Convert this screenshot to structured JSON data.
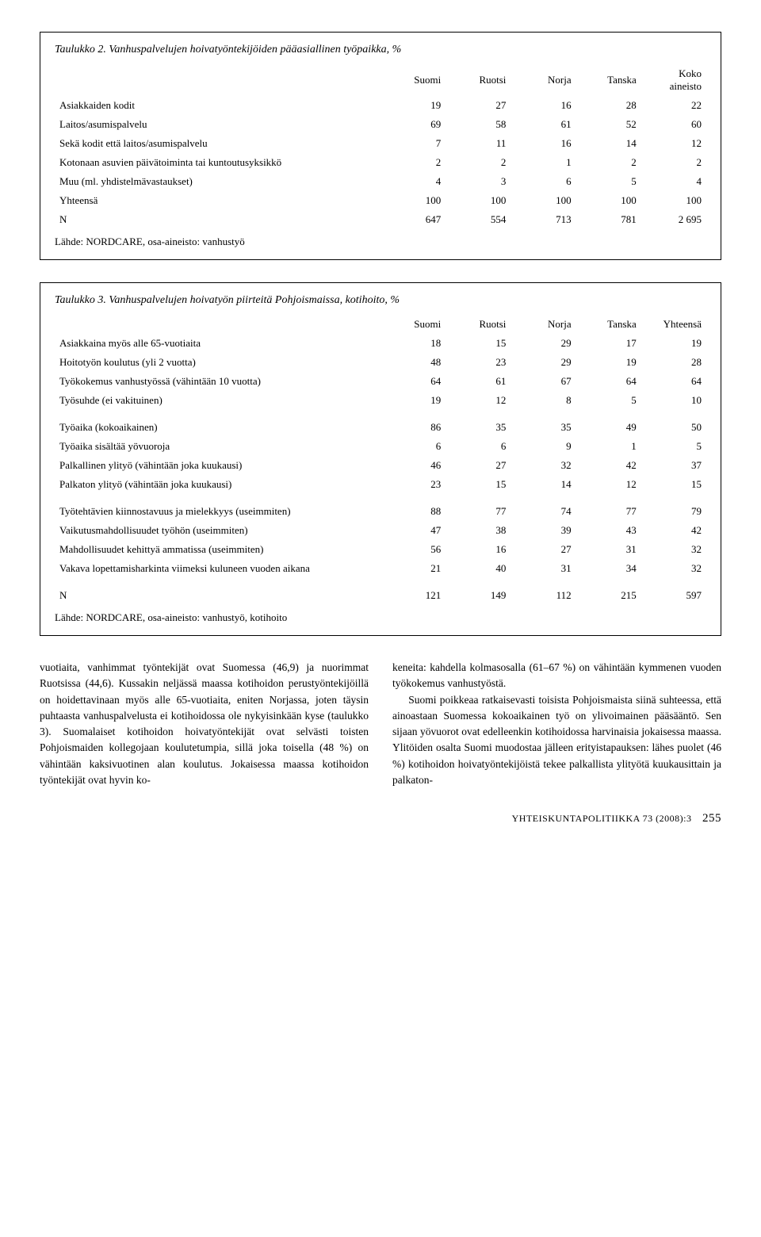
{
  "table1": {
    "title": "Taulukko 2. Vanhuspalvelujen hoivatyöntekijöiden pääasiallinen työpaikka, %",
    "columns": [
      "",
      "Suomi",
      "Ruotsi",
      "Norja",
      "Tanska",
      "Koko aineisto"
    ],
    "rows": [
      [
        "Asiakkaiden kodit",
        "19",
        "27",
        "16",
        "28",
        "22"
      ],
      [
        "Laitos/asumispalvelu",
        "69",
        "58",
        "61",
        "52",
        "60"
      ],
      [
        "Sekä kodit että laitos/asumispalvelu",
        "7",
        "11",
        "16",
        "14",
        "12"
      ],
      [
        "Kotonaan asuvien päivätoiminta tai kuntoutusyksikkö",
        "2",
        "2",
        "1",
        "2",
        "2"
      ],
      [
        "Muu (ml. yhdistelmävastaukset)",
        "4",
        "3",
        "6",
        "5",
        "4"
      ],
      [
        "Yhteensä",
        "100",
        "100",
        "100",
        "100",
        "100"
      ],
      [
        "N",
        "647",
        "554",
        "713",
        "781",
        "2 695"
      ]
    ],
    "source": "Lähde: NORDCARE, osa-aineisto: vanhustyö"
  },
  "table2": {
    "title": "Taulukko 3. Vanhuspalvelujen hoivatyön piirteitä Pohjoismaissa, kotihoito, %",
    "columns": [
      "",
      "Suomi",
      "Ruotsi",
      "Norja",
      "Tanska",
      "Yhteensä"
    ],
    "section1": [
      [
        "Asiakkaina myös alle 65-vuotiaita",
        "18",
        "15",
        "29",
        "17",
        "19"
      ],
      [
        "Hoitotyön koulutus (yli 2 vuotta)",
        "48",
        "23",
        "29",
        "19",
        "28"
      ],
      [
        "Työkokemus vanhustyössä (vähintään 10 vuotta)",
        "64",
        "61",
        "67",
        "64",
        "64"
      ],
      [
        "Työsuhde (ei vakituinen)",
        "19",
        "12",
        "8",
        "5",
        "10"
      ]
    ],
    "section2": [
      [
        "Työaika (kokoaikainen)",
        "86",
        "35",
        "35",
        "49",
        "50"
      ],
      [
        "Työaika sisältää yövuoroja",
        "6",
        "6",
        "9",
        "1",
        "5"
      ],
      [
        "Palkallinen ylityö (vähintään joka kuukausi)",
        "46",
        "27",
        "32",
        "42",
        "37"
      ],
      [
        "Palkaton ylityö (vähintään joka kuukausi)",
        "23",
        "15",
        "14",
        "12",
        "15"
      ]
    ],
    "section3": [
      [
        "Työtehtävien kiinnostavuus ja mielekkyys (useimmiten)",
        "88",
        "77",
        "74",
        "77",
        "79"
      ],
      [
        "Vaikutusmahdollisuudet työhön (useimmiten)",
        "47",
        "38",
        "39",
        "43",
        "42"
      ],
      [
        "Mahdollisuudet kehittyä ammatissa (useimmiten)",
        "56",
        "16",
        "27",
        "31",
        "32"
      ],
      [
        "Vakava lopettamisharkinta viimeksi kuluneen vuoden aikana",
        "21",
        "40",
        "31",
        "34",
        "32"
      ]
    ],
    "nrow": [
      "N",
      "121",
      "149",
      "112",
      "215",
      "597"
    ],
    "source": "Lähde: NORDCARE, osa-aineisto: vanhustyö, kotihoito"
  },
  "body": {
    "left": "vuotiaita, vanhimmat työntekijät ovat Suomessa (46,9) ja nuorimmat Ruotsissa (44,6). Kussakin neljässä maassa kotihoidon perustyöntekijöillä on hoidettavinaan myös alle 65-vuotiaita, eniten Norjassa, joten täysin puhtaasta vanhuspalvelusta ei kotihoidossa ole nykyisinkään kyse (taulukko 3). Suomalaiset kotihoidon hoivatyöntekijät ovat selvästi toisten Pohjoismaiden kollegojaan koulutetumpia, sillä joka toisella (48 %) on vähintään kaksivuotinen alan koulutus. Jokaisessa maassa kotihoidon työntekijät ovat hyvin ko-",
    "right": "keneita: kahdella kolmasosalla (61–67 %) on vähintään kymmenen vuoden työkokemus vanhustyöstä.\n\nSuomi poikkeaa ratkaisevasti toisista Pohjoismaista siinä suhteessa, että ainoastaan Suomessa kokoaikainen työ on ylivoimainen pääsääntö. Sen sijaan yövuorot ovat edelleenkin kotihoidossa harvinaisia jokaisessa maassa. Ylitöiden osalta Suomi muodostaa jälleen erityistapauksen: lähes puolet (46 %) kotihoidon hoivatyöntekijöistä tekee palkallista ylityötä kuukausittain ja palkaton-"
  },
  "footer": {
    "journal": "YHTEISKUNTAPOLITIIKKA 73 (2008):3",
    "page": "255"
  }
}
